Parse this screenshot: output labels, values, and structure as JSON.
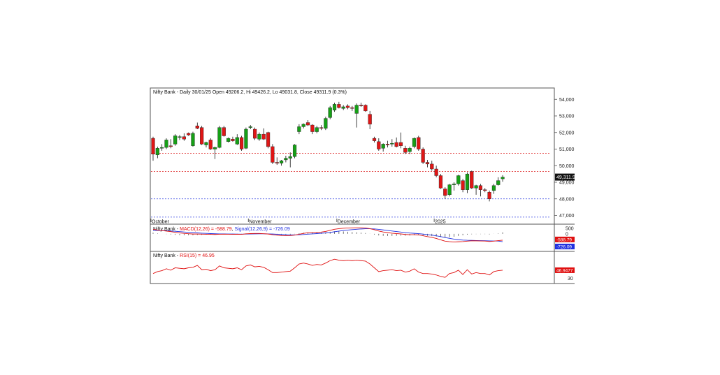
{
  "chart_data": [
    {
      "type": "candlestick",
      "title": "Nifty Bank - Daily 30/01/25 Open 49206.2, Hi 49426.2, Lo 49031.8, Close 49311.9 (0.3%)",
      "ylim": [
        46600,
        54600
      ],
      "y_ticks": [
        47000,
        48000,
        49000,
        50000,
        51000,
        52000,
        53000,
        54000
      ],
      "y_tick_labels": [
        "47,000",
        "48,000",
        "49,000",
        "50,000",
        "51,000",
        "52,000",
        "53,000",
        "54,000"
      ],
      "last_price_label": "49,311.9",
      "last_price": 49311.9,
      "x_labels": [
        {
          "label": "October",
          "index": 0
        },
        {
          "label": "November",
          "index": 22
        },
        {
          "label": "December",
          "index": 42
        },
        {
          "label": "2025",
          "index": 64
        }
      ],
      "reference_lines": [
        {
          "value": 50750,
          "color": "#e03030"
        },
        {
          "value": 49650,
          "color": "#e03030"
        },
        {
          "value": 48000,
          "color": "#3040e0"
        },
        {
          "value": 46900,
          "color": "#3040e0"
        }
      ],
      "candles": [
        [
          51650,
          51750,
          50300,
          50700
        ],
        [
          50650,
          51150,
          50450,
          51050
        ],
        [
          51050,
          51300,
          50900,
          51100
        ],
        [
          51100,
          51650,
          51000,
          51550
        ],
        [
          51200,
          51600,
          51050,
          51150
        ],
        [
          51300,
          51900,
          51200,
          51800
        ],
        [
          51700,
          51850,
          51550,
          51750
        ],
        [
          51750,
          51950,
          51500,
          51600
        ],
        [
          51950,
          52000,
          51800,
          51850
        ],
        [
          51200,
          52050,
          51150,
          51950
        ],
        [
          52400,
          52600,
          52200,
          52250
        ],
        [
          52300,
          52400,
          51250,
          51300
        ],
        [
          51250,
          51450,
          51100,
          51400
        ],
        [
          51550,
          51650,
          50950,
          51000
        ],
        [
          51000,
          51150,
          50400,
          51100
        ],
        [
          51100,
          52400,
          51050,
          52300
        ],
        [
          52300,
          52400,
          51750,
          51800
        ],
        [
          51450,
          51700,
          51400,
          51650
        ],
        [
          51600,
          51750,
          51450,
          51500
        ],
        [
          51300,
          51900,
          51250,
          51700
        ],
        [
          51700,
          51800,
          50900,
          51000
        ],
        [
          51050,
          52300,
          51000,
          52200
        ],
        [
          52300,
          52450,
          52200,
          52350
        ],
        [
          52200,
          52300,
          51550,
          51650
        ],
        [
          51600,
          52000,
          51500,
          51900
        ],
        [
          51900,
          52250,
          51550,
          51600
        ],
        [
          52000,
          52050,
          51050,
          51150
        ],
        [
          51150,
          51300,
          50100,
          50200
        ],
        [
          50200,
          50500,
          50050,
          50150
        ],
        [
          50150,
          50350,
          50000,
          50300
        ],
        [
          50350,
          50600,
          50200,
          50450
        ],
        [
          50450,
          50800,
          49900,
          50550
        ],
        [
          50550,
          51300,
          50450,
          51250
        ],
        [
          52050,
          52500,
          51900,
          52350
        ],
        [
          52350,
          52550,
          52250,
          52500
        ],
        [
          52600,
          52750,
          52400,
          52450
        ],
        [
          52450,
          52500,
          51900,
          52050
        ],
        [
          52050,
          52400,
          51950,
          52300
        ],
        [
          52300,
          52450,
          52150,
          52250
        ],
        [
          52250,
          52950,
          52150,
          52850
        ],
        [
          52900,
          53600,
          52800,
          53500
        ],
        [
          53350,
          53800,
          53250,
          53700
        ],
        [
          53700,
          53850,
          53450,
          53500
        ],
        [
          53450,
          53650,
          53350,
          53550
        ],
        [
          53600,
          53700,
          53400,
          53500
        ],
        [
          53500,
          53600,
          53300,
          53450
        ],
        [
          53150,
          53750,
          52300,
          53650
        ],
        [
          53650,
          53800,
          53550,
          53600
        ],
        [
          53650,
          53700,
          53250,
          53300
        ],
        [
          53100,
          53300,
          52200,
          52500
        ],
        [
          51650,
          51750,
          51400,
          51500
        ],
        [
          51450,
          51650,
          50900,
          51000
        ],
        [
          51050,
          51350,
          50850,
          51300
        ],
        [
          51300,
          51500,
          51100,
          51250
        ],
        [
          51300,
          51600,
          51150,
          51350
        ],
        [
          51400,
          51700,
          51100,
          51150
        ],
        [
          51400,
          52000,
          51050,
          51200
        ],
        [
          51050,
          51200,
          50700,
          50800
        ],
        [
          50850,
          51150,
          50700,
          51050
        ],
        [
          51150,
          51700,
          51050,
          51650
        ],
        [
          51700,
          51800,
          50900,
          51000
        ],
        [
          51000,
          51100,
          50100,
          50200
        ],
        [
          50200,
          50350,
          49900,
          50100
        ],
        [
          50100,
          50300,
          49700,
          49800
        ],
        [
          49800,
          50000,
          49300,
          49400
        ],
        [
          49400,
          49500,
          48600,
          48650
        ],
        [
          48600,
          48700,
          48000,
          48200
        ],
        [
          48250,
          48900,
          48150,
          48850
        ],
        [
          48850,
          49000,
          48500,
          48900
        ],
        [
          48900,
          49450,
          48800,
          49400
        ],
        [
          49100,
          49200,
          48400,
          48550
        ],
        [
          48550,
          49600,
          48350,
          49500
        ],
        [
          49650,
          49700,
          48600,
          48650
        ],
        [
          48650,
          48850,
          48250,
          48800
        ],
        [
          48800,
          48900,
          48150,
          48550
        ],
        [
          48550,
          48650,
          48400,
          48500
        ],
        [
          48400,
          48500,
          47850,
          48000
        ],
        [
          48500,
          48900,
          48300,
          48800
        ],
        [
          48850,
          49300,
          48800,
          49100
        ],
        [
          49206.2,
          49426.2,
          49031.8,
          49311.9
        ]
      ]
    },
    {
      "type": "line",
      "title": "Nifty Bank - MACD(12,26) = -588.79, Signal(12,26,9) = -726.09",
      "series": [
        {
          "name": "MACD(12,26)",
          "color": "#e01010",
          "value_label": "-588.79"
        },
        {
          "name": "Signal(12,26,9)",
          "color": "#2030e0",
          "value_label": "-726.09"
        }
      ],
      "y_ticks": [
        500,
        0
      ],
      "y_tick_labels": [
        "500",
        "0"
      ],
      "ylim": [
        -1500,
        700
      ],
      "macd": [
        420,
        350,
        300,
        250,
        200,
        140,
        80,
        40,
        10,
        -20,
        -20,
        -30,
        -40,
        -50,
        -60,
        -40,
        -30,
        -40,
        -50,
        -40,
        -50,
        0,
        20,
        30,
        30,
        10,
        -20,
        -80,
        -130,
        -160,
        -170,
        -160,
        -120,
        -40,
        40,
        100,
        120,
        140,
        160,
        220,
        320,
        420,
        480,
        520,
        540,
        550,
        560,
        560,
        540,
        480,
        380,
        260,
        170,
        110,
        60,
        20,
        -10,
        -60,
        -80,
        -80,
        -100,
        -180,
        -260,
        -330,
        -430,
        -560,
        -680,
        -730,
        -760,
        -740,
        -720,
        -680,
        -650,
        -650,
        -660,
        -670,
        -710,
        -680,
        -630,
        -588.79
      ],
      "signal": [
        320,
        310,
        300,
        280,
        260,
        235,
        205,
        170,
        140,
        110,
        85,
        60,
        40,
        20,
        5,
        -5,
        -10,
        -15,
        -20,
        -25,
        -30,
        -25,
        -15,
        -5,
        0,
        0,
        -5,
        -20,
        -40,
        -60,
        -80,
        -95,
        -100,
        -90,
        -65,
        -35,
        -5,
        20,
        50,
        85,
        130,
        190,
        250,
        300,
        350,
        390,
        420,
        450,
        470,
        470,
        450,
        410,
        360,
        310,
        260,
        210,
        160,
        115,
        75,
        45,
        15,
        -25,
        -70,
        -120,
        -185,
        -260,
        -345,
        -420,
        -490,
        -545,
        -580,
        -600,
        -610,
        -620,
        -630,
        -640,
        -655,
        -665,
        -670,
        -726.09
      ]
    },
    {
      "type": "line",
      "title": "Nifty Bank - RSI(15) = 46.95",
      "series": [
        {
          "name": "RSI(15)",
          "color": "#e01010",
          "value_label": "46.9477"
        }
      ],
      "y_ticks": [
        30
      ],
      "y_tick_labels": [
        "30"
      ],
      "ylim": [
        22,
        82
      ],
      "values": [
        40,
        44,
        46,
        50,
        47,
        52,
        51,
        50,
        52,
        53,
        57,
        48,
        49,
        46,
        48,
        56,
        52,
        51,
        50,
        52,
        48,
        56,
        58,
        54,
        55,
        53,
        48,
        42,
        42,
        43,
        44,
        45,
        52,
        60,
        62,
        60,
        57,
        59,
        58,
        62,
        67,
        70,
        68,
        67,
        68,
        67,
        68,
        67,
        66,
        60,
        52,
        44,
        46,
        47,
        48,
        46,
        47,
        43,
        45,
        50,
        43,
        40,
        40,
        39,
        37,
        34,
        32,
        40,
        42,
        47,
        38,
        48,
        39,
        42,
        40,
        40,
        37,
        44,
        46,
        46.95
      ]
    }
  ]
}
